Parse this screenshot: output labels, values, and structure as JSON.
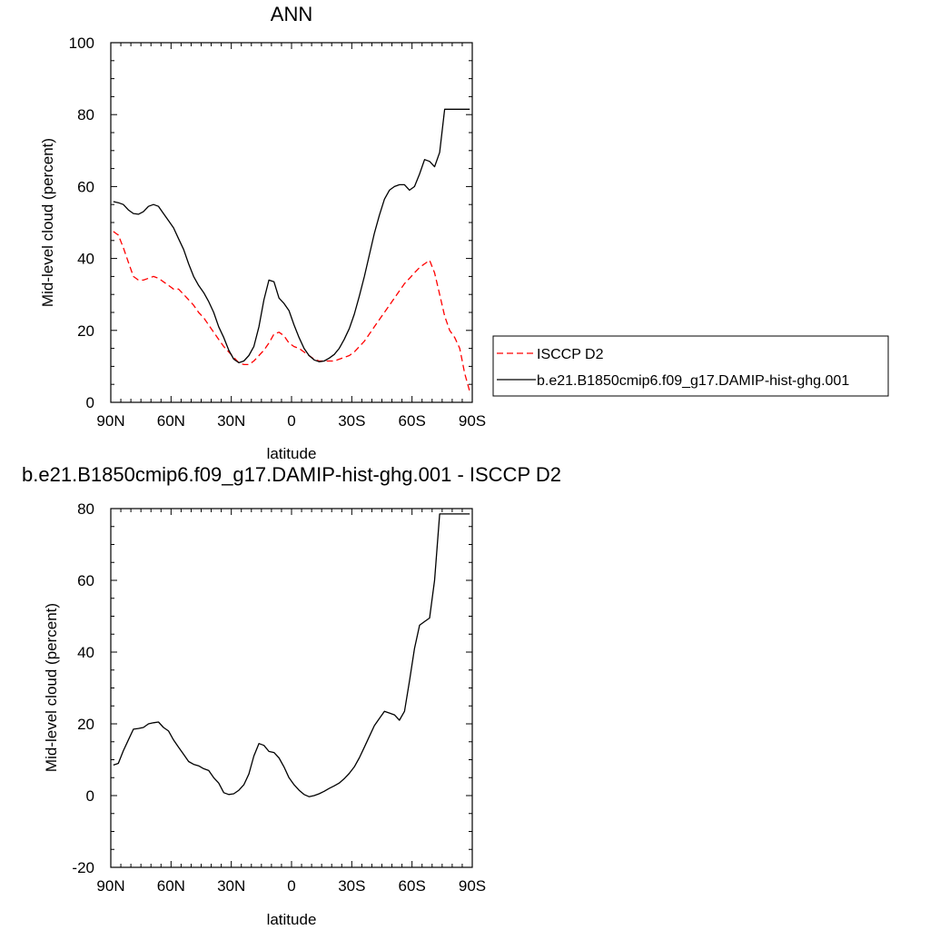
{
  "chart_data": [
    {
      "type": "line",
      "title": "ANN",
      "xlabel": "latitude",
      "ylabel": "Mid-level cloud (percent)",
      "x_tick_labels": [
        "90N",
        "60N",
        "30N",
        "0",
        "30S",
        "60S",
        "90S"
      ],
      "x_tick_values": [
        90,
        60,
        30,
        0,
        -30,
        -60,
        -90
      ],
      "xlim": [
        90,
        -90
      ],
      "ylim": [
        0,
        100
      ],
      "y_ticks": [
        0,
        20,
        40,
        60,
        80,
        100
      ],
      "grid": false,
      "legend_position": "right",
      "series": [
        {
          "name": "ISCCP D2",
          "color": "#ff0000",
          "dash": "dashed",
          "x": [
            88.75,
            86.25,
            83.75,
            81.25,
            78.75,
            76.25,
            73.75,
            71.25,
            68.75,
            66.25,
            63.75,
            61.25,
            58.75,
            56.25,
            53.75,
            51.25,
            48.75,
            46.25,
            43.75,
            41.25,
            38.75,
            36.25,
            33.75,
            31.25,
            28.75,
            26.25,
            23.75,
            21.25,
            18.75,
            16.25,
            13.75,
            11.25,
            8.75,
            6.25,
            3.75,
            1.25,
            -1.25,
            -3.75,
            -6.25,
            -8.75,
            -11.25,
            -13.75,
            -16.25,
            -18.75,
            -21.25,
            -23.75,
            -26.25,
            -28.75,
            -31.25,
            -33.75,
            -36.25,
            -38.75,
            -41.25,
            -43.75,
            -46.25,
            -48.75,
            -51.25,
            -53.75,
            -56.25,
            -58.75,
            -61.25,
            -63.75,
            -66.25,
            -68.75,
            -71.25,
            -73.75,
            -76.25,
            -78.75,
            -81.25,
            -83.75,
            -86.25,
            -88.75
          ],
          "y": [
            47.5,
            46.5,
            43,
            39,
            35,
            34,
            34,
            34.5,
            35,
            34.5,
            33.5,
            32.5,
            31.5,
            31.5,
            30,
            28.5,
            27,
            25,
            23.5,
            21.5,
            19.5,
            17.5,
            15.5,
            14,
            12.5,
            11,
            10.5,
            10.5,
            11.5,
            13,
            14.5,
            16.5,
            19,
            19.5,
            18.5,
            16.5,
            15.5,
            15,
            14,
            13,
            12,
            11.5,
            11.5,
            11.5,
            11.5,
            12,
            12.5,
            13,
            14,
            15.5,
            17,
            19,
            21,
            23,
            25,
            27,
            29,
            31,
            33,
            34.5,
            36,
            37.5,
            38.5,
            39.5,
            36,
            30,
            24,
            20,
            18,
            15,
            8,
            3
          ]
        },
        {
          "name": "b.e21.B1850cmip6.f09_g17.DAMIP-hist-ghg.001",
          "color": "#000000",
          "dash": "solid",
          "x": [
            88.75,
            86.25,
            83.75,
            81.25,
            78.75,
            76.25,
            73.75,
            71.25,
            68.75,
            66.25,
            63.75,
            61.25,
            58.75,
            56.25,
            53.75,
            51.25,
            48.75,
            46.25,
            43.75,
            41.25,
            38.75,
            36.25,
            33.75,
            31.25,
            28.75,
            26.25,
            23.75,
            21.25,
            18.75,
            16.25,
            13.75,
            11.25,
            8.75,
            6.25,
            3.75,
            1.25,
            -1.25,
            -3.75,
            -6.25,
            -8.75,
            -11.25,
            -13.75,
            -16.25,
            -18.75,
            -21.25,
            -23.75,
            -26.25,
            -28.75,
            -31.25,
            -33.75,
            -36.25,
            -38.75,
            -41.25,
            -43.75,
            -46.25,
            -48.75,
            -51.25,
            -53.75,
            -56.25,
            -58.75,
            -61.25,
            -63.75,
            -66.25,
            -68.75,
            -71.25,
            -73.75,
            -76.25,
            -78.75,
            -81.25,
            -83.75,
            -86.25,
            -88.75
          ],
          "y": [
            55.8,
            55.5,
            55,
            53.5,
            52.5,
            52.3,
            53,
            54.5,
            55,
            54.5,
            52.5,
            50.5,
            48.5,
            45.5,
            42.5,
            38.5,
            35,
            32.5,
            30.5,
            28,
            25,
            21,
            18,
            14.5,
            12,
            11,
            11.5,
            13,
            15.5,
            21,
            28.5,
            34,
            33.5,
            29,
            27.5,
            25.5,
            21.5,
            18,
            15,
            13,
            11.8,
            11.3,
            11.5,
            12.3,
            13.3,
            15,
            17.5,
            20.5,
            24.5,
            29.5,
            35,
            41,
            47,
            52,
            56.5,
            59,
            60,
            60.5,
            60.5,
            59,
            60,
            63.5,
            67.5,
            67,
            65.5,
            69.5,
            81.5,
            81.5,
            81.5,
            81.5,
            81.5,
            81.5
          ]
        }
      ]
    },
    {
      "type": "line",
      "title": "b.e21.B1850cmip6.f09_g17.DAMIP-hist-ghg.001 - ISCCP D2",
      "xlabel": "latitude",
      "ylabel": "Mid-level cloud (percent)",
      "x_tick_labels": [
        "90N",
        "60N",
        "30N",
        "0",
        "30S",
        "60S",
        "90S"
      ],
      "x_tick_values": [
        90,
        60,
        30,
        0,
        -30,
        -60,
        -90
      ],
      "xlim": [
        90,
        -90
      ],
      "ylim": [
        -20,
        80
      ],
      "y_ticks": [
        -20,
        0,
        20,
        40,
        60,
        80
      ],
      "grid": false,
      "series": [
        {
          "color": "#000000",
          "dash": "solid",
          "x": [
            88.75,
            86.25,
            83.75,
            81.25,
            78.75,
            76.25,
            73.75,
            71.25,
            68.75,
            66.25,
            63.75,
            61.25,
            58.75,
            56.25,
            53.75,
            51.25,
            48.75,
            46.25,
            43.75,
            41.25,
            38.75,
            36.25,
            33.75,
            31.25,
            28.75,
            26.25,
            23.75,
            21.25,
            18.75,
            16.25,
            13.75,
            11.25,
            8.75,
            6.25,
            3.75,
            1.25,
            -1.25,
            -3.75,
            -6.25,
            -8.75,
            -11.25,
            -13.75,
            -16.25,
            -18.75,
            -21.25,
            -23.75,
            -26.25,
            -28.75,
            -31.25,
            -33.75,
            -36.25,
            -38.75,
            -41.25,
            -43.75,
            -46.25,
            -48.75,
            -51.25,
            -53.75,
            -56.25,
            -58.75,
            -61.25,
            -63.75,
            -66.25,
            -68.75,
            -71.25,
            -73.75,
            -76.25,
            -78.75,
            -81.25,
            -83.75,
            -86.25,
            -88.75
          ],
          "y": [
            8.5,
            9,
            12.5,
            15.5,
            18.5,
            18.7,
            19,
            20,
            20.3,
            20.5,
            19,
            18,
            15.5,
            13.5,
            11.5,
            9.5,
            8.7,
            8.3,
            7.5,
            7,
            5,
            3.5,
            0.8,
            0.3,
            0.5,
            1.5,
            3,
            6,
            11,
            14.5,
            14,
            12.3,
            12,
            10.5,
            8,
            5,
            3,
            1.5,
            0.3,
            -0.3,
            0,
            0.5,
            1.2,
            2,
            2.7,
            3.5,
            4.7,
            6.2,
            8,
            10.5,
            13.5,
            16.5,
            19.5,
            21.5,
            23.5,
            23,
            22.5,
            21,
            23.5,
            32,
            41,
            47.5,
            48.5,
            49.5,
            60,
            78.5,
            78.5,
            78.5,
            78.5,
            78.5,
            78.5,
            78.5
          ]
        }
      ]
    }
  ]
}
